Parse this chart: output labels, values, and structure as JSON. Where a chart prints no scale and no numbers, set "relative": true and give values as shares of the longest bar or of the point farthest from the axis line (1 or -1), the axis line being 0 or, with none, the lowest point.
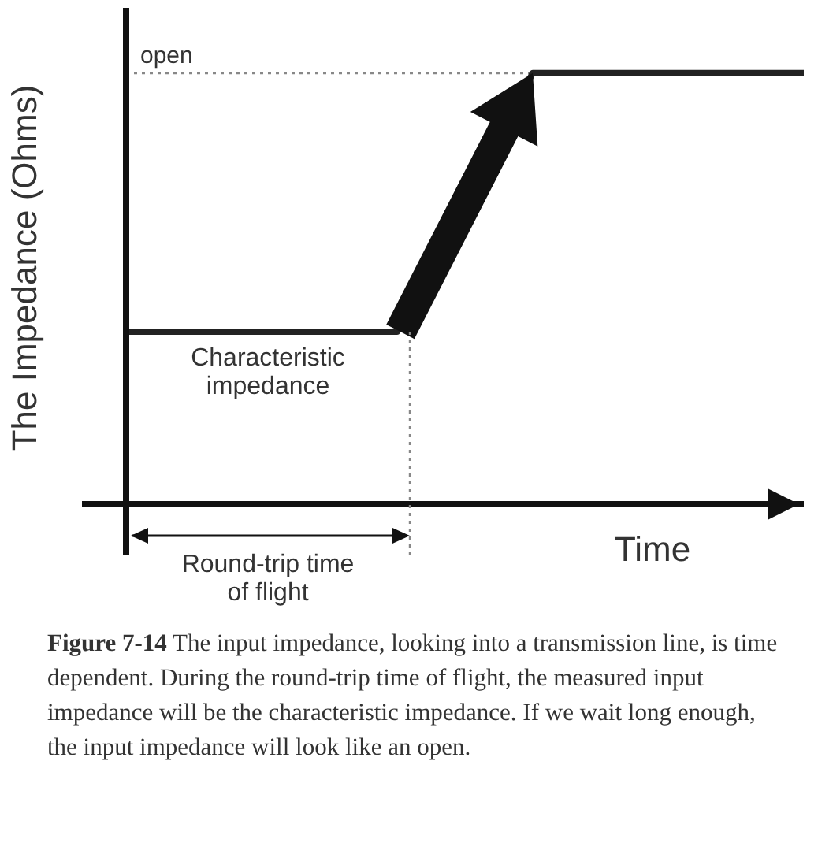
{
  "chart_data": {
    "type": "line",
    "relative": true,
    "xlabel": "Time",
    "ylabel": "The Impedance (Ohms)",
    "categories": [
      null,
      null,
      null,
      null,
      null,
      null
    ],
    "series": [
      {
        "color": "#222222",
        "values": [
          0.4,
          0.4,
          0.4,
          1,
          1,
          1
        ]
      }
    ],
    "ref_lines": [
      {
        "axis": "y",
        "value": 1,
        "label": "open",
        "color": "#888888",
        "line_style": "dotted"
      }
    ],
    "annotations": [
      "Characteristic\nimpedance",
      "Round-trip time\nof flight",
      "Figure 7-14 The input impedance, looking into a transmission line, is time dependent. During the round-trip time of flight, the measured input impedance will be the characteristic impedance. If we wait long enough, the input impedance will look like an open."
    ],
    "marker": "none",
    "line_style": "solid",
    "grid": false,
    "legend": false
  }
}
